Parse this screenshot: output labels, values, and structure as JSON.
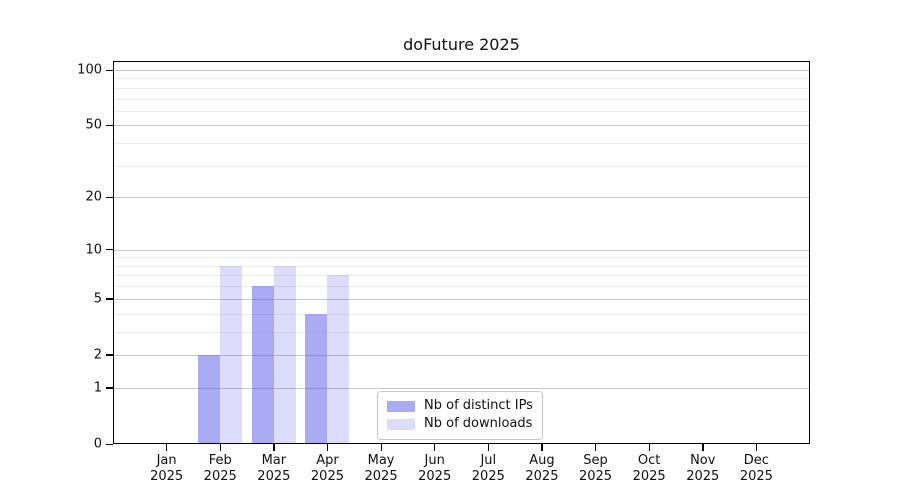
{
  "title": "doFuture 2025",
  "chart_data": {
    "type": "bar",
    "title": "doFuture 2025",
    "categories": [
      "Jan",
      "Feb",
      "Mar",
      "Apr",
      "May",
      "Jun",
      "Jul",
      "Aug",
      "Sep",
      "Oct",
      "Nov",
      "Dec"
    ],
    "category_year": "2025",
    "series": [
      {
        "name": "Nb of distinct IPs",
        "color": "rgba(85,85,235,0.5)",
        "values": [
          0,
          2,
          6,
          4,
          0,
          0,
          0,
          0,
          0,
          0,
          0,
          0
        ]
      },
      {
        "name": "Nb of downloads",
        "color": "rgba(85,85,235,0.2)",
        "values": [
          0,
          8,
          8,
          7,
          0,
          0,
          0,
          0,
          0,
          0,
          0,
          0
        ]
      }
    ],
    "xlabel": "",
    "ylabel": "",
    "ylim": [
      0,
      100
    ],
    "y_scale": "log1p",
    "y_major_ticks": [
      0,
      1,
      2,
      5,
      10,
      20,
      50,
      100
    ],
    "y_minor_gridlines": [
      3,
      4,
      6,
      7,
      8,
      9,
      30,
      40,
      60,
      70,
      80,
      90
    ],
    "grid": "horizontal",
    "legend_position": "bottom-center",
    "legend_entries": [
      "Nb of distinct IPs",
      "Nb of downloads"
    ]
  },
  "colors": {
    "bar_distinct_ips": "rgba(85,85,235,0.5)",
    "bar_downloads": "rgba(85,85,235,0.2)",
    "grid_major": "#c9c9c9",
    "grid_minor": "#ececec",
    "axis": "#000000"
  }
}
